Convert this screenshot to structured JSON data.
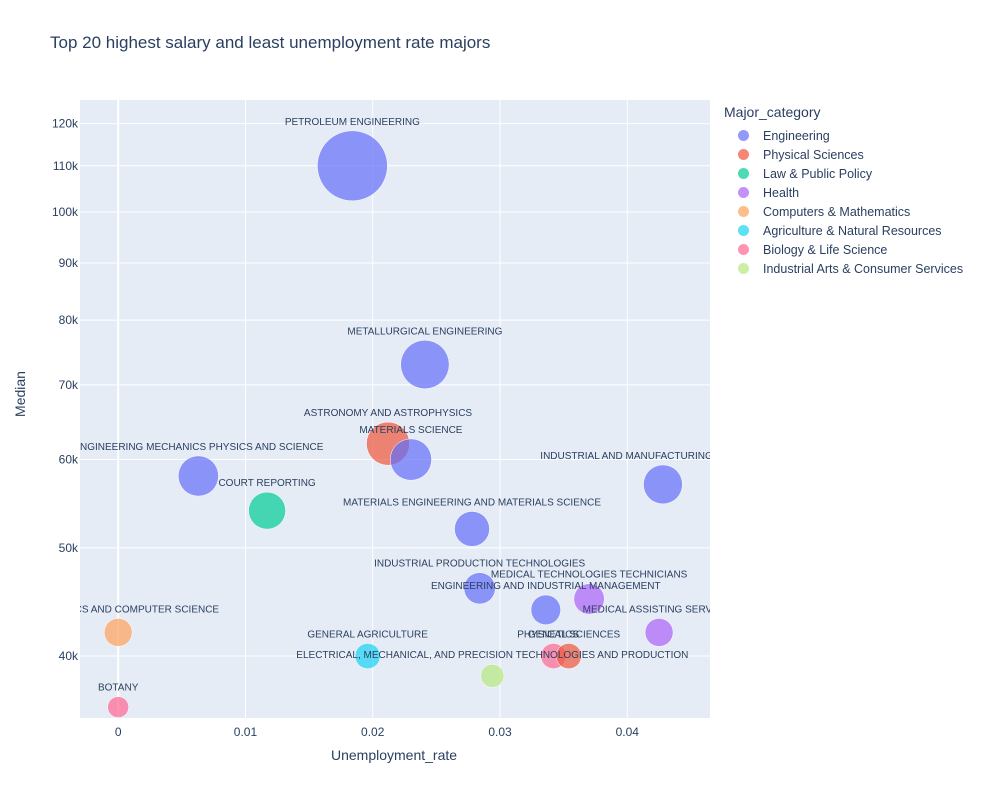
{
  "chart_data": {
    "type": "scatter",
    "title": "Top 20 highest salary and least unemployment rate majors",
    "xlabel": "Unemployment_rate",
    "ylabel": "Median",
    "y_scale": "log",
    "xlim": [
      -0.003,
      0.0465
    ],
    "ylim": [
      35200,
      126000
    ],
    "x_ticks": [
      0,
      0.01,
      0.02,
      0.03,
      0.04
    ],
    "x_tick_labels": [
      "0",
      "0.01",
      "0.02",
      "0.03",
      "0.04"
    ],
    "y_ticks": [
      40000,
      50000,
      60000,
      70000,
      80000,
      90000,
      100000,
      110000,
      120000
    ],
    "y_tick_labels": [
      "40k",
      "50k",
      "60k",
      "70k",
      "80k",
      "90k",
      "100k",
      "110k",
      "120k"
    ],
    "grid": true,
    "legend_title": "Major_category",
    "legend_position": "right",
    "categories": [
      {
        "name": "Engineering",
        "color": "#636efa"
      },
      {
        "name": "Physical Sciences",
        "color": "#ef553b"
      },
      {
        "name": "Law & Public Policy",
        "color": "#00cc96"
      },
      {
        "name": "Health",
        "color": "#ab63fa"
      },
      {
        "name": "Computers & Mathematics",
        "color": "#ffa15a"
      },
      {
        "name": "Agriculture & Natural Resources",
        "color": "#19d3f3"
      },
      {
        "name": "Biology & Life Science",
        "color": "#ff6692"
      },
      {
        "name": "Industrial Arts & Consumer Services",
        "color": "#b6e880"
      }
    ],
    "points": [
      {
        "label": "PETROLEUM ENGINEERING",
        "category": "Engineering",
        "x": 0.0184,
        "y": 110000,
        "size": 1.0
      },
      {
        "label": "METALLURGICAL ENGINEERING",
        "category": "Engineering",
        "x": 0.0241,
        "y": 73000,
        "size": 0.48
      },
      {
        "label": "ASTRONOMY AND ASTROPHYSICS",
        "category": "Physical Sciences",
        "x": 0.0212,
        "y": 62000,
        "size": 0.38
      },
      {
        "label": "MATERIALS SCIENCE",
        "category": "Engineering",
        "x": 0.023,
        "y": 60000,
        "size": 0.35
      },
      {
        "label": "ENGINEERING MECHANICS PHYSICS AND SCIENCE",
        "category": "Engineering",
        "x": 0.0063,
        "y": 58000,
        "size": 0.33
      },
      {
        "label": "INDUSTRIAL AND MANUFACTURING ENGINEERING",
        "category": "Engineering",
        "x": 0.0428,
        "y": 57000,
        "size": 0.31
      },
      {
        "label": "COURT REPORTING",
        "category": "Law & Public Policy",
        "x": 0.0117,
        "y": 54000,
        "size": 0.28
      },
      {
        "label": "MATERIALS ENGINEERING AND MATERIALS SCIENCE",
        "category": "Engineering",
        "x": 0.0278,
        "y": 52000,
        "size": 0.25
      },
      {
        "label": "INDUSTRIAL PRODUCTION TECHNOLOGIES",
        "category": "Engineering",
        "x": 0.0284,
        "y": 46000,
        "size": 0.2
      },
      {
        "label": "MEDICAL TECHNOLOGIES TECHNICIANS",
        "category": "Health",
        "x": 0.037,
        "y": 45000,
        "size": 0.19
      },
      {
        "label": "ENGINEERING AND INDUSTRIAL MANAGEMENT",
        "category": "Engineering",
        "x": 0.0336,
        "y": 44000,
        "size": 0.18
      },
      {
        "label": "MATHEMATICS AND COMPUTER SCIENCE",
        "category": "Computers & Mathematics",
        "x": 0.0,
        "y": 42000,
        "size": 0.16
      },
      {
        "label": "MEDICAL ASSISTING SERVICES",
        "category": "Health",
        "x": 0.0425,
        "y": 42000,
        "size": 0.16
      },
      {
        "label": "GENERAL AGRICULTURE",
        "category": "Agriculture & Natural Resources",
        "x": 0.0196,
        "y": 40000,
        "size": 0.13
      },
      {
        "label": "GENETICS",
        "category": "Biology & Life Science",
        "x": 0.0342,
        "y": 40000,
        "size": 0.13
      },
      {
        "label": "PHYSICAL SCIENCES",
        "category": "Physical Sciences",
        "x": 0.0354,
        "y": 40000,
        "size": 0.13
      },
      {
        "label": "ELECTRICAL, MECHANICAL, AND PRECISION TECHNOLOGIES AND PRODUCTION",
        "category": "Industrial Arts & Consumer Services",
        "x": 0.0294,
        "y": 38400,
        "size": 0.11
      },
      {
        "label": "BOTANY",
        "category": "Biology & Life Science",
        "x": 0.0,
        "y": 36000,
        "size": 0.09
      }
    ]
  }
}
